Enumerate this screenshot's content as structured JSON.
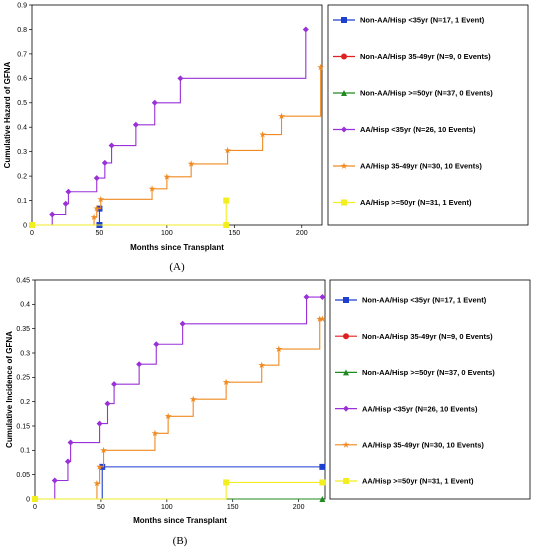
{
  "series_styles": [
    {
      "name": "Non-AA/Hisp <35yr (N=17, 1 Event)",
      "color": "#1f3fcf",
      "marker": "square"
    },
    {
      "name": "Non-AA/Hisp 35-49yr (N=9, 0 Events)",
      "color": "#e02020",
      "marker": "circle"
    },
    {
      "name": "Non-AA/Hisp >=50yr (N=37, 0 Events)",
      "color": "#1f8a1f",
      "marker": "triangle"
    },
    {
      "name": "AA/Hisp <35yr (N=26, 10 Events)",
      "color": "#9a30d8",
      "marker": "diamond"
    },
    {
      "name": "AA/Hisp 35-49yr (N=30, 10 Events)",
      "color": "#f08a20",
      "marker": "star"
    },
    {
      "name": "AA/Hisp >=50yr (N=31, 1 Event)",
      "color": "#f2ee20",
      "marker": "square"
    }
  ],
  "chart_data": [
    {
      "type": "line",
      "panel_label": "(A)",
      "xlabel": "Months since Transplant",
      "ylabel": "Cumulative Hazard of GFNA",
      "xlim": [
        0,
        215
      ],
      "ylim": [
        0,
        0.9
      ],
      "xticks": [
        "0",
        "50",
        "100",
        "150",
        "200"
      ],
      "xtick_values": [
        0,
        50,
        100,
        150,
        200
      ],
      "yticks": [
        "0",
        "0.1",
        "0.2",
        "0.3",
        "0.4",
        "0.5",
        "0.6",
        "0.7",
        "0.8",
        "0.9"
      ],
      "ytick_values": [
        0,
        0.1,
        0.2,
        0.3,
        0.4,
        0.5,
        0.6,
        0.7,
        0.8,
        0.9
      ],
      "grid": false,
      "legend": "right",
      "series": [
        {
          "name": "Non-AA/Hisp <35yr (N=17, 1 Event)",
          "x": [
            0,
            50,
            50
          ],
          "y": [
            0,
            0,
            0.067
          ]
        },
        {
          "name": "Non-AA/Hisp 35-49yr (N=9, 0 Events)",
          "x": [
            0
          ],
          "y": [
            0
          ]
        },
        {
          "name": "Non-AA/Hisp >=50yr (N=37, 0 Events)",
          "x": [
            0
          ],
          "y": [
            0
          ]
        },
        {
          "name": "AA/Hisp <35yr (N=26, 10 Events)",
          "x": [
            0,
            15,
            25,
            27,
            48,
            54,
            59,
            77,
            91,
            110,
            203
          ],
          "y": [
            0,
            0.043,
            0.087,
            0.136,
            0.192,
            0.254,
            0.325,
            0.41,
            0.5,
            0.6,
            0.8
          ]
        },
        {
          "name": "AA/Hisp 35-49yr (N=30, 10 Events)",
          "x": [
            0,
            46,
            48,
            51,
            89,
            100,
            118,
            145,
            171,
            185,
            214
          ],
          "y": [
            0,
            0.032,
            0.067,
            0.105,
            0.148,
            0.197,
            0.25,
            0.305,
            0.37,
            0.445,
            0.645
          ]
        },
        {
          "name": "AA/Hisp >=50yr (N=31, 1 Event)",
          "x": [
            0,
            144,
            144
          ],
          "y": [
            0,
            0,
            0.1
          ]
        }
      ]
    },
    {
      "type": "line",
      "panel_label": "(B)",
      "xlabel": "Months since Transplant",
      "ylabel": "Cumulative Incidence of GFNA",
      "xlim": [
        0,
        220
      ],
      "ylim": [
        0,
        0.45
      ],
      "xticks": [
        "0",
        "50",
        "100",
        "150",
        "200"
      ],
      "xtick_values": [
        0,
        50,
        100,
        150,
        200
      ],
      "yticks": [
        "0",
        "0.05",
        "0.1",
        "0.15",
        "0.2",
        "0.25",
        "0.3",
        "0.35",
        "0.4",
        "0.45"
      ],
      "ytick_values": [
        0,
        0.05,
        0.1,
        0.15,
        0.2,
        0.25,
        0.3,
        0.35,
        0.4,
        0.45
      ],
      "grid": false,
      "legend": "right",
      "series": [
        {
          "name": "Non-AA/Hisp <35yr (N=17, 1 Event)",
          "x": [
            0,
            51,
            218
          ],
          "y": [
            0,
            0.066,
            0.066
          ]
        },
        {
          "name": "Non-AA/Hisp 35-49yr (N=9, 0 Events)",
          "x": [
            0
          ],
          "y": [
            0
          ]
        },
        {
          "name": "Non-AA/Hisp >=50yr (N=37, 0 Events)",
          "x": [
            0,
            218
          ],
          "y": [
            0,
            0
          ]
        },
        {
          "name": "AA/Hisp <35yr (N=26, 10 Events)",
          "x": [
            0,
            15,
            25,
            27,
            49,
            55,
            60,
            79,
            92,
            112,
            206,
            218
          ],
          "y": [
            0,
            0.038,
            0.077,
            0.116,
            0.155,
            0.196,
            0.236,
            0.277,
            0.318,
            0.36,
            0.415,
            0.415
          ]
        },
        {
          "name": "AA/Hisp 35-49yr (N=30, 10 Events)",
          "x": [
            0,
            47,
            49,
            52,
            91,
            101,
            120,
            145,
            172,
            185,
            216,
            218
          ],
          "y": [
            0,
            0.032,
            0.066,
            0.1,
            0.135,
            0.17,
            0.205,
            0.24,
            0.275,
            0.308,
            0.37,
            0.37
          ]
        },
        {
          "name": "AA/Hisp >=50yr (N=31, 1 Event)",
          "x": [
            0,
            145,
            218
          ],
          "y": [
            0,
            0.034,
            0.034
          ]
        }
      ]
    }
  ]
}
